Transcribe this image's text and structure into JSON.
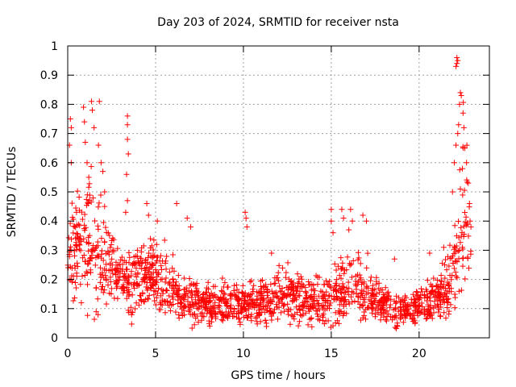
{
  "chart_data": {
    "type": "scatter",
    "title": "Day 203 of 2024, SRMTID for receiver nsta",
    "xlabel": "GPS time / hours",
    "ylabel": "SRMTID / TECUs",
    "xlim": [
      0,
      24
    ],
    "ylim": [
      0,
      1
    ],
    "xticks": [
      0,
      5,
      10,
      15,
      20
    ],
    "yticks": [
      0,
      0.1,
      0.2,
      0.3,
      0.4,
      0.5,
      0.6,
      0.7,
      0.8,
      0.9,
      1
    ],
    "ytick_labels": [
      "0",
      "0.1",
      "0.2",
      "0.3",
      "0.4",
      "0.5",
      "0.6",
      "0.7",
      "0.8",
      "0.9",
      "1"
    ],
    "grid": true,
    "marker": "+",
    "color": "#ff0000",
    "x_range_data": [
      0.0,
      23.0
    ],
    "envelope": {
      "x": [
        0,
        0.5,
        1,
        1.5,
        2,
        2.5,
        3,
        3.5,
        4,
        4.5,
        5,
        5.5,
        6,
        6.5,
        7,
        7.5,
        8,
        8.5,
        9,
        9.5,
        10,
        10.5,
        11,
        11.5,
        12,
        12.5,
        13,
        13.5,
        14,
        14.5,
        15,
        15.5,
        16,
        16.5,
        17,
        17.5,
        18,
        18.5,
        19,
        19.5,
        20,
        20.5,
        21,
        21.5,
        22,
        22.5,
        23
      ],
      "typical": [
        0.33,
        0.3,
        0.32,
        0.3,
        0.27,
        0.24,
        0.2,
        0.18,
        0.2,
        0.22,
        0.22,
        0.2,
        0.17,
        0.14,
        0.13,
        0.12,
        0.11,
        0.11,
        0.12,
        0.11,
        0.12,
        0.12,
        0.12,
        0.13,
        0.15,
        0.15,
        0.14,
        0.13,
        0.12,
        0.12,
        0.14,
        0.16,
        0.17,
        0.17,
        0.15,
        0.13,
        0.11,
        0.09,
        0.09,
        0.1,
        0.11,
        0.12,
        0.14,
        0.15,
        0.25,
        0.45,
        0.32
      ],
      "spread": [
        0.1,
        0.1,
        0.12,
        0.12,
        0.1,
        0.07,
        0.06,
        0.06,
        0.07,
        0.07,
        0.07,
        0.07,
        0.06,
        0.05,
        0.05,
        0.04,
        0.04,
        0.04,
        0.04,
        0.04,
        0.04,
        0.04,
        0.04,
        0.05,
        0.05,
        0.05,
        0.05,
        0.05,
        0.05,
        0.05,
        0.06,
        0.07,
        0.07,
        0.07,
        0.06,
        0.05,
        0.04,
        0.04,
        0.04,
        0.04,
        0.04,
        0.05,
        0.05,
        0.06,
        0.12,
        0.2,
        0.08
      ]
    },
    "spikes": [
      {
        "x": 0.15,
        "y": 0.75
      },
      {
        "x": 0.2,
        "y": 0.72
      },
      {
        "x": 0.1,
        "y": 0.66
      },
      {
        "x": 0.2,
        "y": 0.6
      },
      {
        "x": 0.5,
        "y": 0.43
      },
      {
        "x": 0.9,
        "y": 0.79
      },
      {
        "x": 0.95,
        "y": 0.74
      },
      {
        "x": 1.0,
        "y": 0.67
      },
      {
        "x": 1.1,
        "y": 0.6
      },
      {
        "x": 1.2,
        "y": 0.55
      },
      {
        "x": 1.35,
        "y": 0.81
      },
      {
        "x": 1.4,
        "y": 0.78
      },
      {
        "x": 1.5,
        "y": 0.72
      },
      {
        "x": 1.8,
        "y": 0.81
      },
      {
        "x": 1.75,
        "y": 0.66
      },
      {
        "x": 1.9,
        "y": 0.6
      },
      {
        "x": 2.0,
        "y": 0.57
      },
      {
        "x": 2.1,
        "y": 0.5
      },
      {
        "x": 2.1,
        "y": 0.45
      },
      {
        "x": 3.4,
        "y": 0.76
      },
      {
        "x": 3.4,
        "y": 0.73
      },
      {
        "x": 3.4,
        "y": 0.68
      },
      {
        "x": 3.45,
        "y": 0.63
      },
      {
        "x": 3.35,
        "y": 0.56
      },
      {
        "x": 3.4,
        "y": 0.47
      },
      {
        "x": 3.3,
        "y": 0.43
      },
      {
        "x": 4.5,
        "y": 0.46
      },
      {
        "x": 4.6,
        "y": 0.42
      },
      {
        "x": 5.1,
        "y": 0.4
      },
      {
        "x": 6.2,
        "y": 0.46
      },
      {
        "x": 6.8,
        "y": 0.41
      },
      {
        "x": 7.0,
        "y": 0.38
      },
      {
        "x": 10.1,
        "y": 0.43
      },
      {
        "x": 10.15,
        "y": 0.41
      },
      {
        "x": 10.2,
        "y": 0.38
      },
      {
        "x": 11.6,
        "y": 0.29
      },
      {
        "x": 15.0,
        "y": 0.44
      },
      {
        "x": 15.0,
        "y": 0.4
      },
      {
        "x": 15.1,
        "y": 0.36
      },
      {
        "x": 15.6,
        "y": 0.44
      },
      {
        "x": 15.7,
        "y": 0.41
      },
      {
        "x": 16.1,
        "y": 0.44
      },
      {
        "x": 16.2,
        "y": 0.4
      },
      {
        "x": 16.0,
        "y": 0.37
      },
      {
        "x": 16.8,
        "y": 0.42
      },
      {
        "x": 17.0,
        "y": 0.4
      },
      {
        "x": 18.6,
        "y": 0.27
      },
      {
        "x": 20.6,
        "y": 0.29
      },
      {
        "x": 21.4,
        "y": 0.31
      },
      {
        "x": 21.9,
        "y": 0.5
      },
      {
        "x": 22.0,
        "y": 0.6
      },
      {
        "x": 22.1,
        "y": 0.66
      },
      {
        "x": 22.2,
        "y": 0.7
      },
      {
        "x": 22.25,
        "y": 0.73
      },
      {
        "x": 22.3,
        "y": 0.8
      },
      {
        "x": 22.35,
        "y": 0.84
      },
      {
        "x": 22.4,
        "y": 0.83
      },
      {
        "x": 22.5,
        "y": 0.77
      },
      {
        "x": 22.55,
        "y": 0.72
      },
      {
        "x": 22.15,
        "y": 0.96
      },
      {
        "x": 22.15,
        "y": 0.94
      },
      {
        "x": 22.1,
        "y": 0.93
      },
      {
        "x": 22.2,
        "y": 0.95
      },
      {
        "x": 22.6,
        "y": 0.65
      },
      {
        "x": 22.7,
        "y": 0.6
      },
      {
        "x": 22.8,
        "y": 0.53
      },
      {
        "x": 22.9,
        "y": 0.4
      },
      {
        "x": 22.95,
        "y": 0.38
      }
    ]
  }
}
